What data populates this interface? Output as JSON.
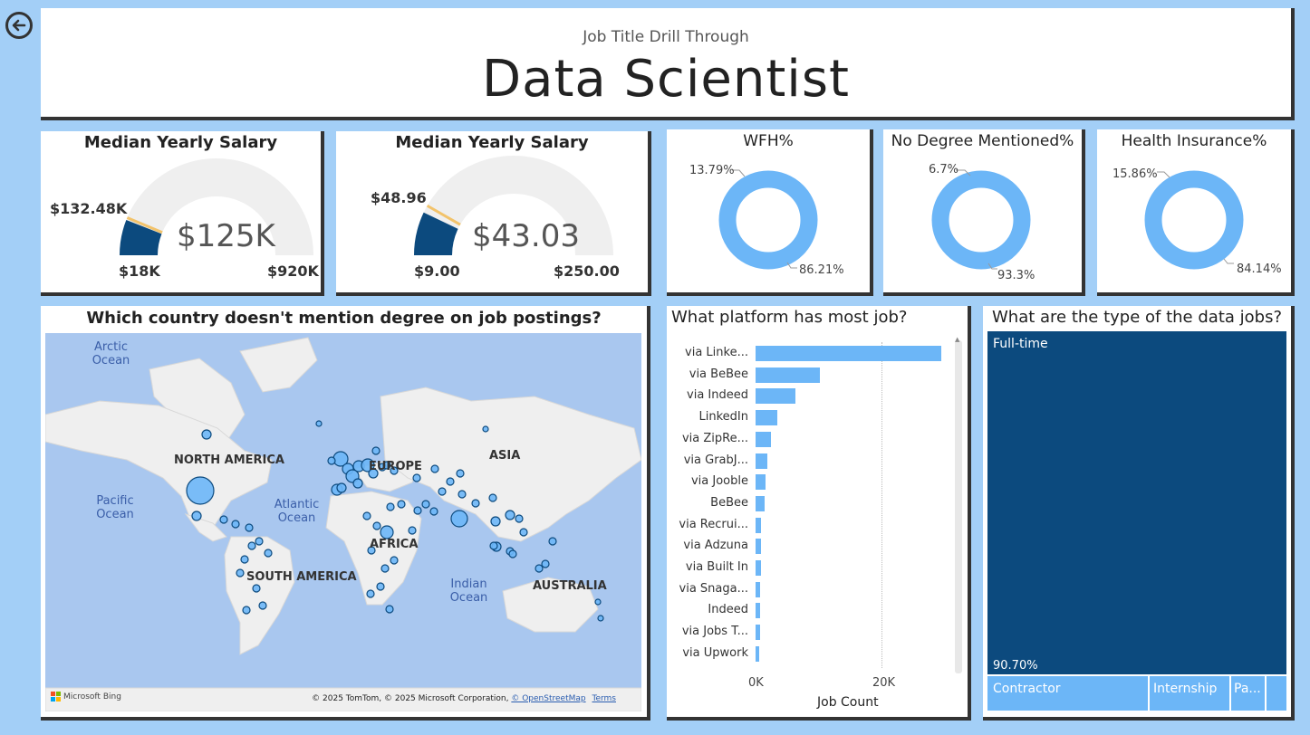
{
  "nav": {
    "back_icon": "back-arrow-icon"
  },
  "header": {
    "subtitle": "Job Title Drill Through",
    "title": "Data Scientist"
  },
  "gauges": [
    {
      "title": "Median Yearly Salary",
      "target": "$132.48K",
      "value": "$125K",
      "min": "$18K",
      "max": "$920K",
      "min_num": 18,
      "max_num": 920,
      "value_num": 125,
      "target_num": 132.48
    },
    {
      "title": "Median Yearly Salary",
      "target": "$48.96",
      "value": "$43.03",
      "min": "$9.00",
      "max": "$250.00",
      "min_num": 9,
      "max_num": 250,
      "value_num": 43.03,
      "target_num": 48.96
    }
  ],
  "donuts": [
    {
      "title": "WFH%",
      "small_label": "13.79%",
      "large_label": "86.21%",
      "small_pct": 13.79
    },
    {
      "title": "No Degree Mentioned%",
      "small_label": "6.7%",
      "large_label": "93.3%",
      "small_pct": 6.7
    },
    {
      "title": "Health Insurance%",
      "small_label": "15.86%",
      "large_label": "84.14%",
      "small_pct": 15.86
    }
  ],
  "map": {
    "title": "Which country doesn't mention degree on job postings?",
    "continents": [
      "NORTH AMERICA",
      "EUROPE",
      "ASIA",
      "AFRICA",
      "SOUTH AMERICA",
      "AUSTRALIA"
    ],
    "oceans": [
      "Arctic Ocean",
      "Pacific Ocean",
      "Atlantic Ocean",
      "Indian Ocean"
    ],
    "attribution": "© 2025 TomTom, © 2025 Microsoft Corporation,",
    "osm_link": "© OpenStreetMap",
    "terms_link": "Terms",
    "bing_logo": "Microsoft Bing"
  },
  "platforms": {
    "title": "What platform has most job?",
    "xlabel": "Job Count",
    "ticks": [
      "0K",
      "20K"
    ]
  },
  "chart_data": {
    "type": "bar",
    "orientation": "horizontal",
    "categories": [
      "via Linke...",
      "via BeBee",
      "via Indeed",
      "LinkedIn",
      "via ZipRe...",
      "via GrabJ...",
      "via Jooble",
      "BeBee",
      "via Recrui...",
      "via Adzuna",
      "via Built In",
      "via Snaga...",
      "Indeed",
      "via Jobs T...",
      "via Upwork"
    ],
    "values": [
      29500,
      10200,
      6400,
      3400,
      2500,
      1800,
      1600,
      1500,
      900,
      850,
      800,
      750,
      700,
      650,
      600
    ],
    "xlabel": "Job Count",
    "xlim": [
      0,
      31000
    ]
  },
  "treemap": {
    "title": "What are the type of the data jobs?",
    "cells": [
      {
        "label": "Full-time",
        "pct": "90.70%"
      },
      {
        "label": "Contractor"
      },
      {
        "label": "Internship"
      },
      {
        "label": "Pa..."
      }
    ]
  },
  "colors": {
    "dark": "#0c4a7e",
    "light": "#6cb6f7",
    "gauge_bg": "#efefef",
    "target": "#f2c36b",
    "bg": "#a3cff7"
  }
}
